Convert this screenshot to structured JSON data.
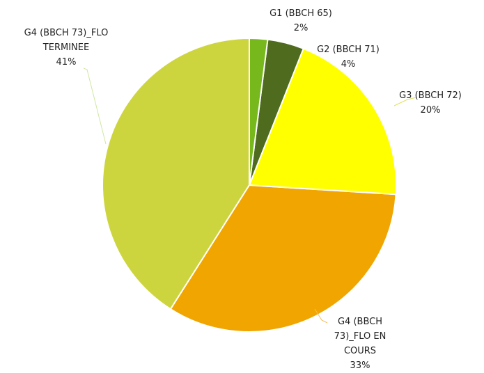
{
  "chart_data": {
    "type": "pie",
    "categories": [
      "G1 (BBCH 65)",
      "G2 (BBCH 71)",
      "G3 (BBCH 72)",
      "G4 (BBCH 73)_FLO EN COURS",
      "G4 (BBCH 73)_FLO TERMINEE"
    ],
    "values": [
      2,
      4,
      20,
      33,
      41
    ],
    "value_labels": [
      "2%",
      "4%",
      "20%",
      "33%",
      "41%"
    ],
    "colors": [
      "#77b81d",
      "#4e6b1e",
      "#ffff00",
      "#f0a500",
      "#cdd53e"
    ]
  }
}
